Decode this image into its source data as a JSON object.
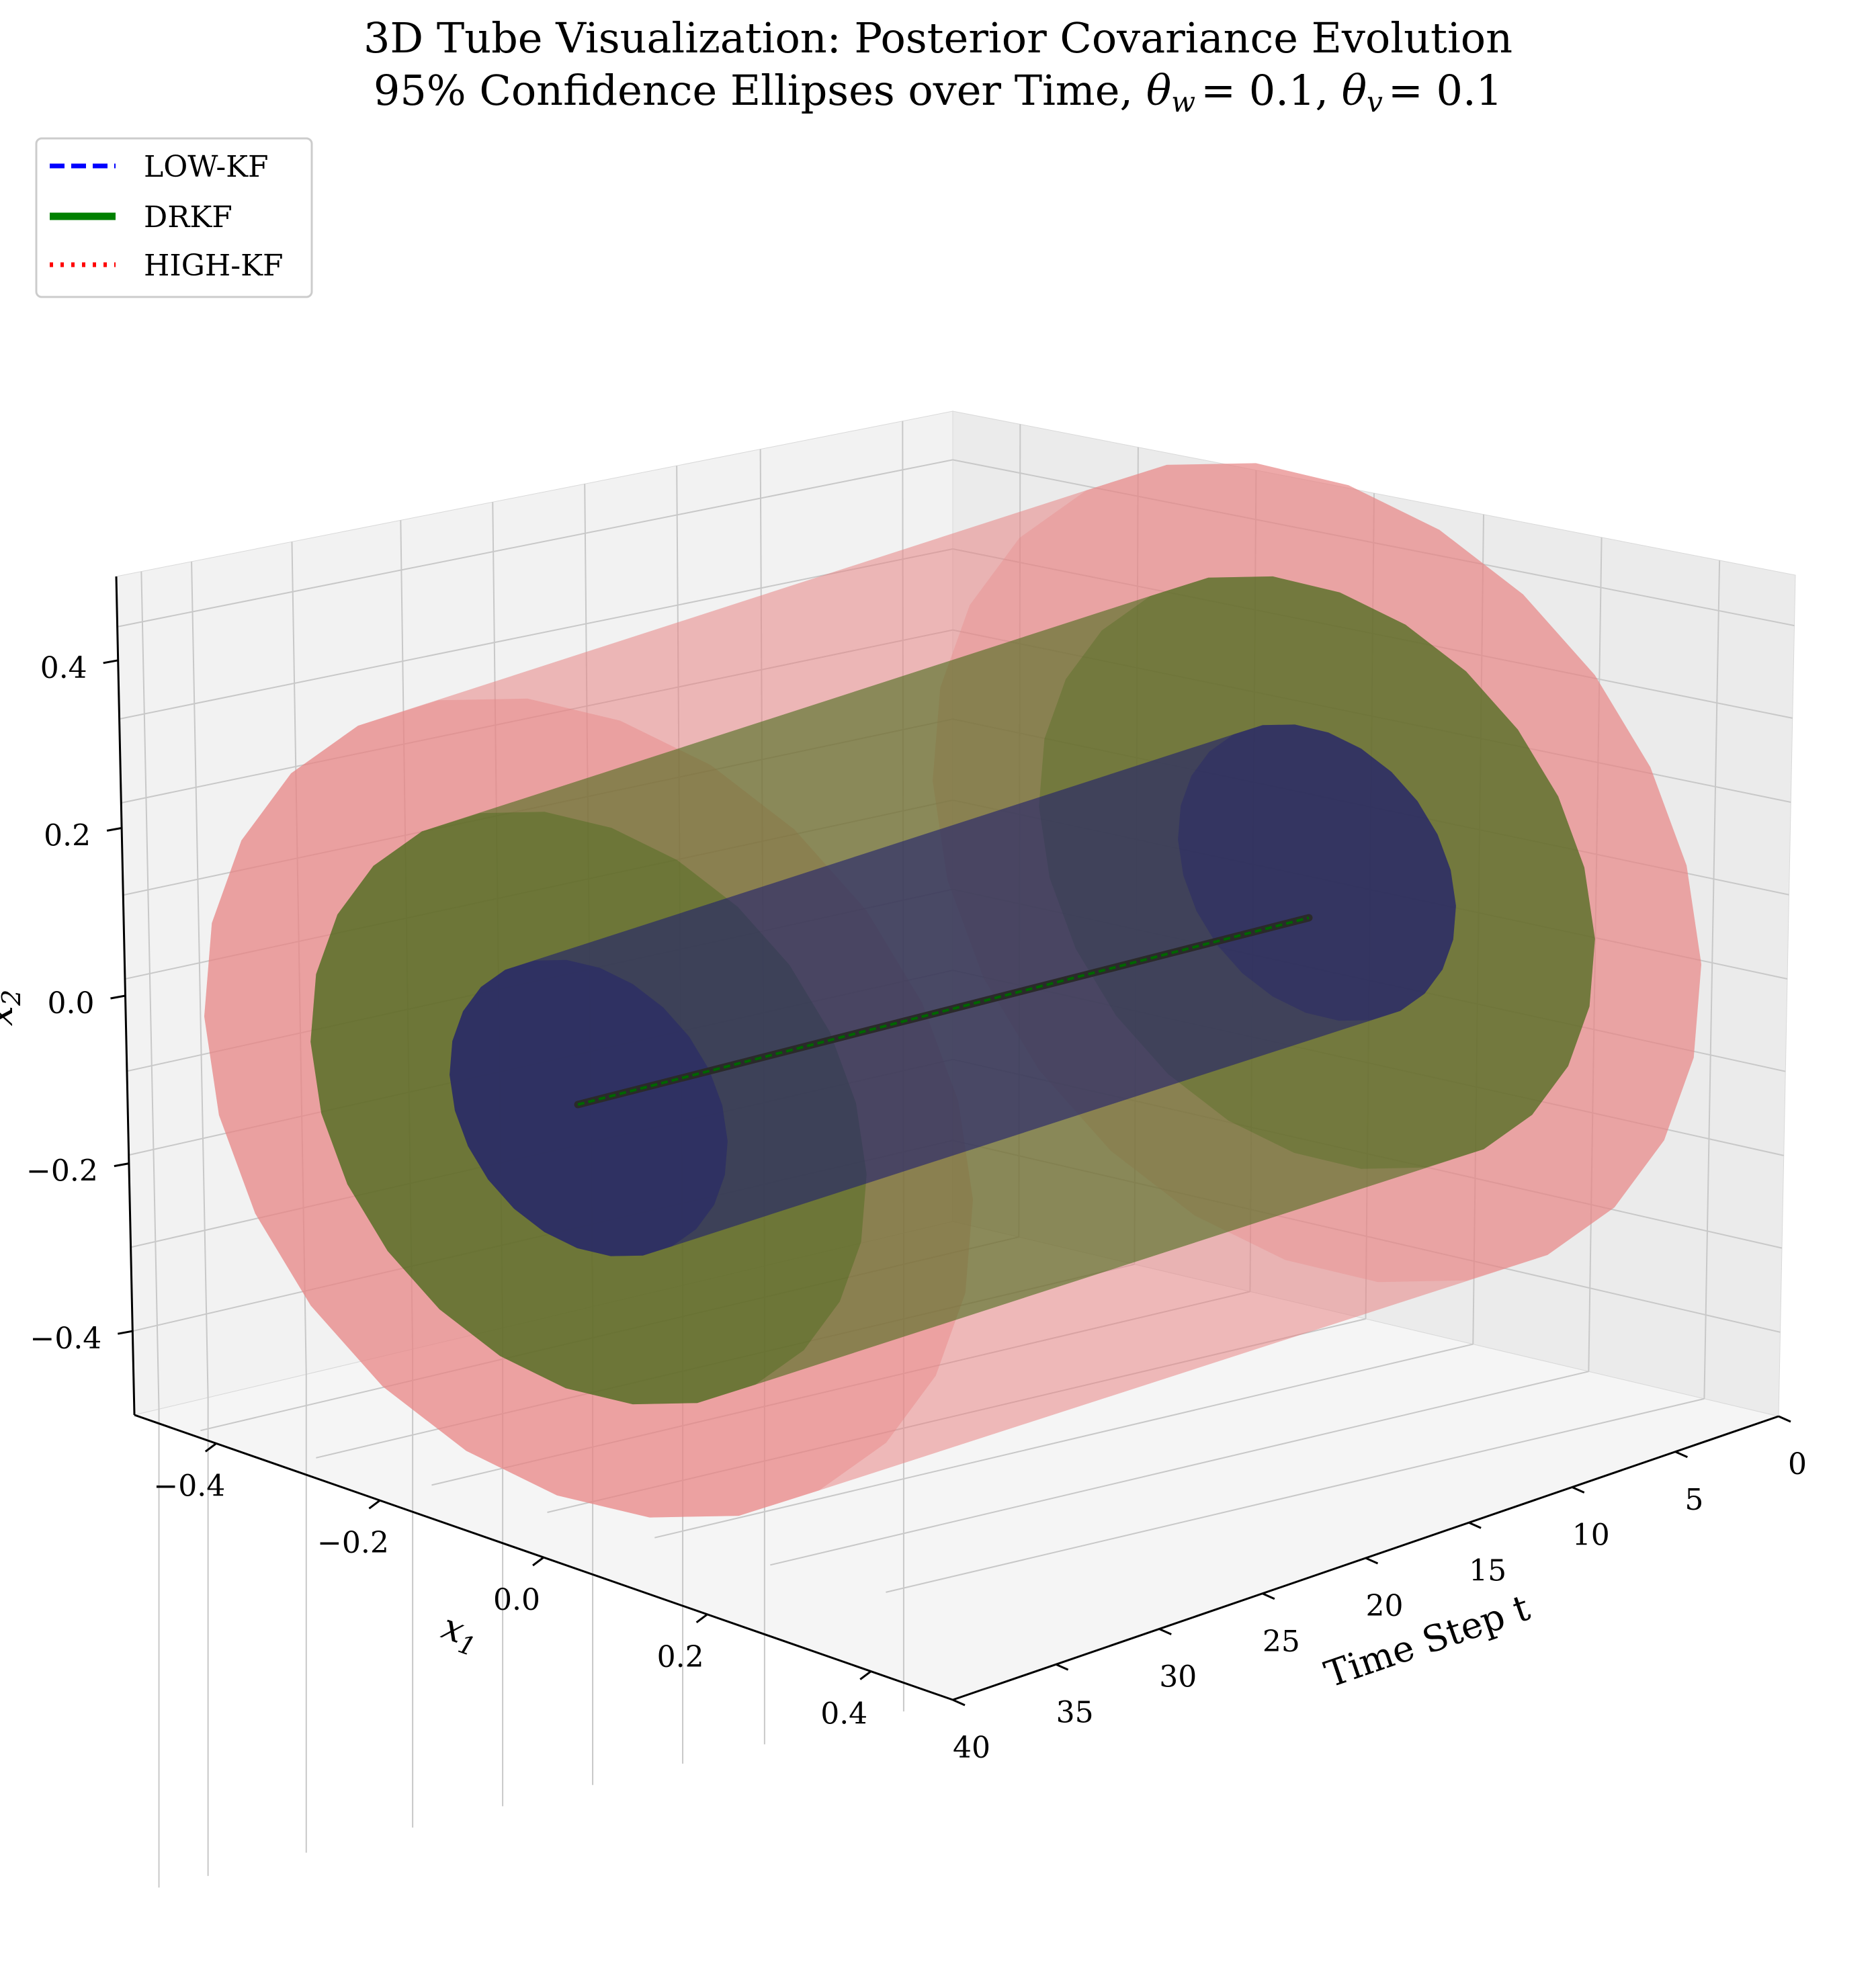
{
  "chart_data": {
    "type": "3d-surface",
    "title_line1": "3D Tube Visualization: Posterior Covariance Evolution",
    "title_line2_prefix": "95% Confidence Ellipses over Time, ",
    "theta_w_label": "θ",
    "theta_w_sub": "w",
    "theta_v_label": "θ",
    "theta_v_sub": "v",
    "theta_w_value": "= 0.1",
    "theta_v_value": "= 0.1",
    "separator": ", ",
    "axes": {
      "t": {
        "label": "Time Step t",
        "ticks": [
          0,
          5,
          10,
          15,
          20,
          25,
          30,
          35,
          40
        ],
        "range": [
          0,
          40
        ]
      },
      "x1": {
        "label": "x",
        "label_sub": "1",
        "ticks": [
          "−0.4",
          "−0.2",
          "0.0",
          "0.2",
          "0.4"
        ],
        "range": [
          -0.5,
          0.5
        ]
      },
      "x2": {
        "label": "x",
        "label_sub": "2",
        "ticks": [
          "−0.4",
          "−0.2",
          "0.0",
          "0.2",
          "0.4"
        ],
        "range": [
          -0.5,
          0.5
        ]
      }
    },
    "grid": true,
    "legend": {
      "placement": "top-left",
      "entries": [
        {
          "label": "LOW-KF",
          "color": "#0000ff",
          "style": "dashed"
        },
        {
          "label": "DRKF",
          "color": "#008000",
          "style": "solid"
        },
        {
          "label": "HIGH-KF",
          "color": "#ff0000",
          "style": "dotted"
        }
      ]
    },
    "series": [
      {
        "name": "HIGH-KF",
        "color": "#e88585",
        "t_range": [
          0,
          40
        ],
        "radius_x1": 0.47,
        "radius_x2": 0.47,
        "center": [
          0,
          0
        ]
      },
      {
        "name": "DRKF",
        "color": "#4a6a1a",
        "t_range": [
          0,
          40
        ],
        "radius_x1": 0.34,
        "radius_x2": 0.34,
        "center": [
          0,
          0
        ]
      },
      {
        "name": "LOW-KF",
        "color": "#1e1e6e",
        "t_range": [
          0,
          40
        ],
        "radius_x1": 0.17,
        "radius_x2": 0.17,
        "center": [
          0,
          0
        ]
      }
    ]
  }
}
